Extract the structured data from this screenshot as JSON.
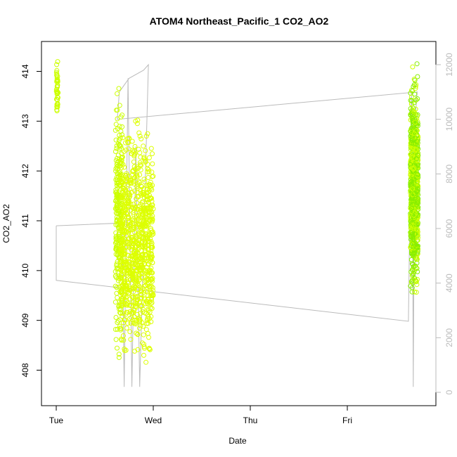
{
  "chart_data": {
    "type": "scatter",
    "title": "ATOM4 Northeast_Pacific_1 CO2_AO2",
    "xlabel": "Date",
    "ylabel": "CO2_AO2",
    "x_ticks": [
      "Tue",
      "Wed",
      "Thu",
      "Fri"
    ],
    "xlim_days": [
      0,
      3.9
    ],
    "ylim": [
      407.6,
      414.4
    ],
    "y_ticks": [
      408,
      409,
      410,
      411,
      412,
      413,
      414
    ],
    "y2_ticks": [
      0,
      2000,
      4000,
      6000,
      8000,
      10000,
      12000
    ],
    "y2lim": [
      0,
      12000
    ],
    "grid": false,
    "colors": {
      "points": "#ccff00",
      "points_dense": "#ddff00",
      "points_green": "#88ee00",
      "line": "#bbbbbb",
      "axis": "#000000",
      "right_axis": "#bbbbbb"
    },
    "series": [
      {
        "marker": "circle",
        "clusters": [
          {
            "x_range": [
              0.0,
              0.02
            ],
            "y_range": [
              412.8,
              414.4
            ],
            "n": 40
          },
          {
            "x_range": [
              0.61,
              0.68
            ],
            "y_range": [
              407.8,
              414.3
            ],
            "n": 260
          },
          {
            "x_range": [
              0.66,
              1.0
            ],
            "y_range": [
              407.6,
              413.4
            ],
            "n": 900
          },
          {
            "x_range": [
              3.65,
              3.73
            ],
            "y_range": [
              409.0,
              414.3
            ],
            "n": 800
          }
        ]
      },
      {
        "marker": "line",
        "points": [
          [
            0.0,
            6100
          ],
          [
            0.0,
            4100
          ],
          [
            3.63,
            2600
          ],
          [
            3.66,
            11000
          ],
          [
            3.67,
            9000
          ],
          [
            3.68,
            200
          ],
          [
            3.69,
            8000
          ],
          [
            3.7,
            10000
          ],
          [
            3.72,
            11000
          ],
          [
            0.63,
            10000
          ],
          [
            0.65,
            11000
          ],
          [
            0.75,
            11500
          ],
          [
            0.9,
            11800
          ],
          [
            0.95,
            12000
          ],
          [
            0.86,
            200
          ],
          [
            0.82,
            9000
          ],
          [
            0.78,
            200
          ],
          [
            0.74,
            11500
          ],
          [
            0.7,
            200
          ],
          [
            0.68,
            6200
          ],
          [
            0.0,
            6100
          ]
        ]
      }
    ]
  }
}
